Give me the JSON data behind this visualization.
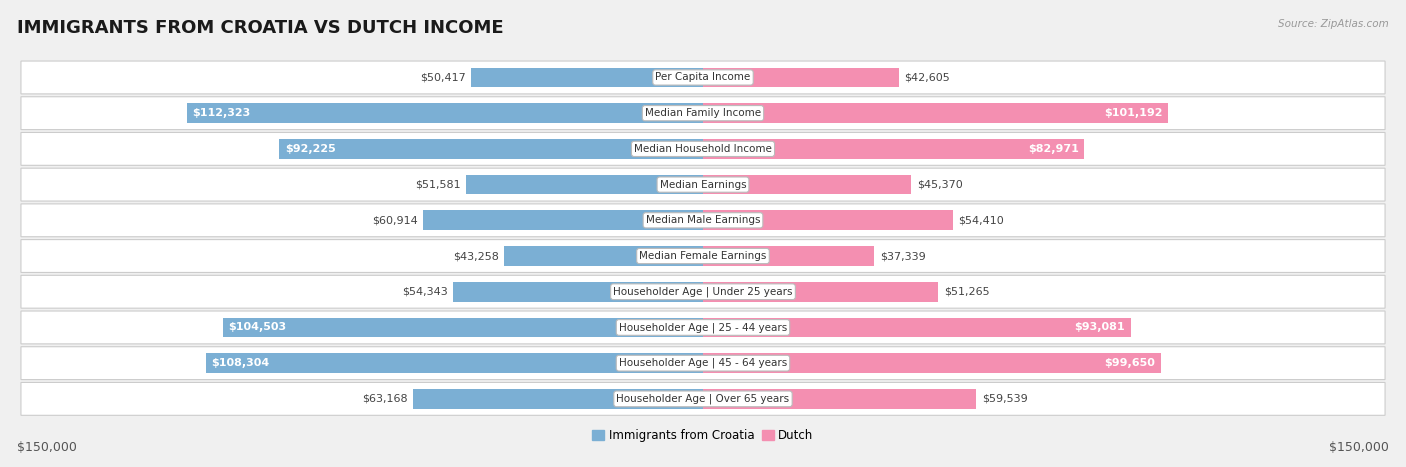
{
  "title": "IMMIGRANTS FROM CROATIA VS DUTCH INCOME",
  "source": "Source: ZipAtlas.com",
  "categories": [
    "Per Capita Income",
    "Median Family Income",
    "Median Household Income",
    "Median Earnings",
    "Median Male Earnings",
    "Median Female Earnings",
    "Householder Age | Under 25 years",
    "Householder Age | 25 - 44 years",
    "Householder Age | 45 - 64 years",
    "Householder Age | Over 65 years"
  ],
  "croatia_values": [
    50417,
    112323,
    92225,
    51581,
    60914,
    43258,
    54343,
    104503,
    108304,
    63168
  ],
  "dutch_values": [
    42605,
    101192,
    82971,
    45370,
    54410,
    37339,
    51265,
    93081,
    99650,
    59539
  ],
  "croatia_labels": [
    "$50,417",
    "$112,323",
    "$92,225",
    "$51,581",
    "$60,914",
    "$43,258",
    "$54,343",
    "$104,503",
    "$108,304",
    "$63,168"
  ],
  "dutch_labels": [
    "$42,605",
    "$101,192",
    "$82,971",
    "$45,370",
    "$54,410",
    "$37,339",
    "$51,265",
    "$93,081",
    "$99,650",
    "$59,539"
  ],
  "croatia_color": "#7bafd4",
  "dutch_color": "#f48fb1",
  "axis_limit": 150000,
  "x_axis_label_left": "$150,000",
  "x_axis_label_right": "$150,000",
  "legend_croatia": "Immigrants from Croatia",
  "legend_dutch": "Dutch",
  "background_color": "#f0f0f0",
  "row_color": "#ffffff",
  "title_fontsize": 13,
  "value_fontsize": 8,
  "category_fontsize": 7.5,
  "axis_fontsize": 9,
  "inside_label_threshold": 75000
}
